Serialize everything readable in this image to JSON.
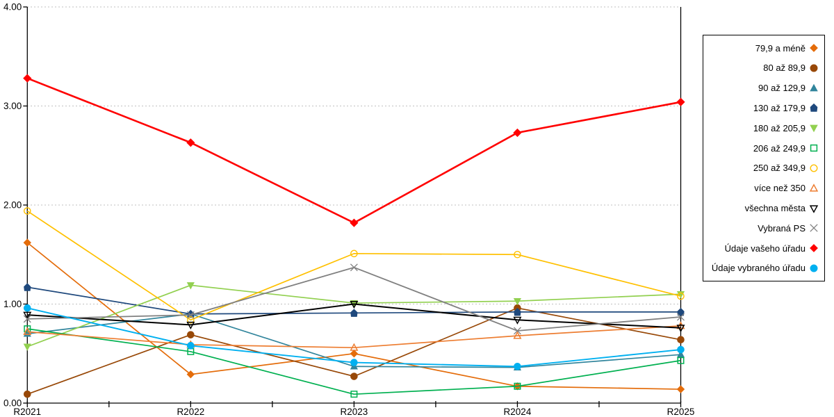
{
  "chart_data": {
    "type": "line",
    "title": "",
    "xlabel": "",
    "ylabel": "",
    "categories": [
      "R2021",
      "R2022",
      "R2023",
      "R2024",
      "R2025"
    ],
    "y_ticks": [
      "0.00",
      "1.00",
      "2.00",
      "3.00",
      "4.00"
    ],
    "ylim": [
      0,
      4
    ],
    "grid": "horizontal-dotted",
    "legend_position": "right",
    "series": [
      {
        "name": "79,9 a méně",
        "color": "#E46C0A",
        "marker": "diamond",
        "fill": "solid",
        "line_width": 1.7,
        "values": [
          1.62,
          0.29,
          0.5,
          0.17,
          0.14
        ]
      },
      {
        "name": "80 až 89,9",
        "color": "#984807",
        "marker": "circle",
        "fill": "solid",
        "line_width": 1.7,
        "values": [
          0.09,
          0.69,
          0.27,
          0.96,
          0.64
        ]
      },
      {
        "name": "90 až 129,9",
        "color": "#31859C",
        "marker": "triangle-up",
        "fill": "solid",
        "line_width": 1.7,
        "values": [
          0.7,
          0.9,
          0.37,
          0.36,
          0.49
        ]
      },
      {
        "name": "130 až 179,9",
        "color": "#1F497D",
        "marker": "pentagon",
        "fill": "solid",
        "line_width": 1.7,
        "values": [
          1.17,
          0.9,
          0.91,
          0.92,
          0.92
        ]
      },
      {
        "name": "180 až 205,9",
        "color": "#92D050",
        "marker": "triangle-down",
        "fill": "solid",
        "line_width": 1.7,
        "values": [
          0.57,
          1.19,
          1.01,
          1.03,
          1.1
        ]
      },
      {
        "name": "206 až 249,9",
        "color": "#00B050",
        "marker": "square",
        "fill": "open",
        "line_width": 1.7,
        "values": [
          0.75,
          0.52,
          0.09,
          0.17,
          0.43
        ]
      },
      {
        "name": "250 až 349,9",
        "color": "#FFC000",
        "marker": "circle",
        "fill": "open",
        "line_width": 1.7,
        "values": [
          1.94,
          0.84,
          1.51,
          1.5,
          1.08
        ]
      },
      {
        "name": "více než 350",
        "color": "#ED7D31",
        "marker": "triangle-up",
        "fill": "open",
        "line_width": 1.7,
        "values": [
          0.72,
          0.59,
          0.56,
          0.68,
          0.78
        ]
      },
      {
        "name": "všechna města",
        "color": "#000000",
        "marker": "triangle-down",
        "fill": "open",
        "line_width": 2.0,
        "values": [
          0.89,
          0.79,
          1.0,
          0.84,
          0.76
        ]
      },
      {
        "name": "Vybraná PS",
        "color": "#808080",
        "marker": "x",
        "fill": "open",
        "line_width": 1.8,
        "values": [
          0.85,
          0.89,
          1.37,
          0.73,
          0.87
        ]
      },
      {
        "name": "Údaje vašeho úřadu",
        "color": "#FF0000",
        "marker": "diamond",
        "fill": "solid",
        "line_width": 2.6,
        "values": [
          3.28,
          2.63,
          1.82,
          2.73,
          3.04
        ]
      },
      {
        "name": "Údaje vybraného úřadu",
        "color": "#00B0F0",
        "marker": "circle",
        "fill": "solid",
        "line_width": 1.9,
        "values": [
          0.96,
          0.58,
          0.41,
          0.37,
          0.54
        ]
      }
    ],
    "colors": {
      "axis": "#000000",
      "gridline": "#AAAAAA",
      "background": "#FFFFFF"
    }
  }
}
